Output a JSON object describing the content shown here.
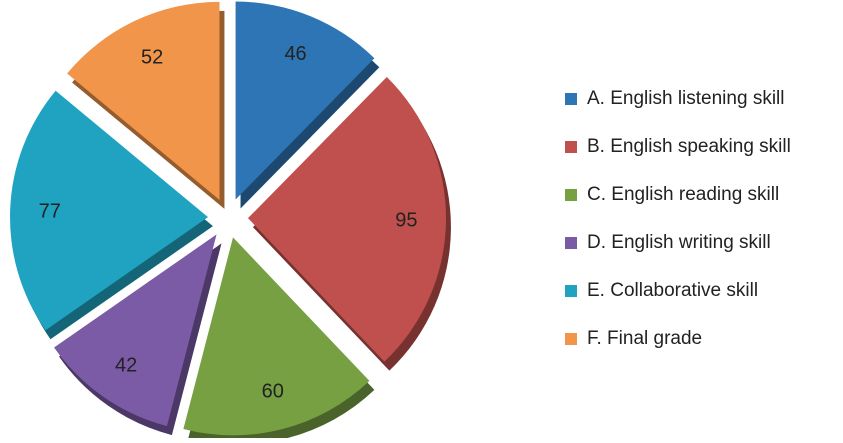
{
  "chart_data": {
    "type": "pie",
    "title": "",
    "categories": [
      "A. English listening skill",
      "B. English speaking skill",
      "C. English reading skill",
      "D. English writing skill",
      "E. Collaborative skill",
      "F. Final grade"
    ],
    "values": [
      46,
      95,
      60,
      42,
      77,
      52
    ],
    "colors": [
      "#2e75b6",
      "#c0504d",
      "#77a043",
      "#7b5aa6",
      "#1fa3c0",
      "#f0954a"
    ],
    "style": "3d-exploded",
    "legend_position": "right"
  }
}
